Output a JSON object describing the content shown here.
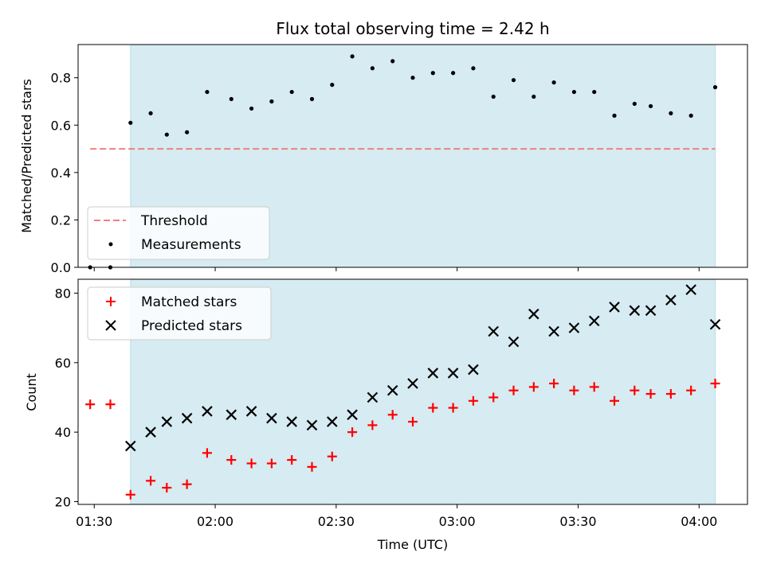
{
  "chart_data": [
    {
      "type": "scatter",
      "title": "Flux total observing time = 2.42 h",
      "xlabel": "",
      "ylabel": "Matched/Predicted stars",
      "xlim": [
        "01:26",
        "04:12"
      ],
      "ylim": [
        0,
        0.94
      ],
      "yticks": [
        "0.0",
        "0.2",
        "0.4",
        "0.6",
        "0.8"
      ],
      "ytick_values": [
        0,
        0.2,
        0.4,
        0.6,
        0.8
      ],
      "shaded_span": [
        "01:39",
        "04:04"
      ],
      "shaded_color": "#add8e6",
      "legend_position": "lower-left",
      "threshold": {
        "name": "Threshold",
        "value": 0.5,
        "x": [
          "01:29",
          "04:04"
        ],
        "color": "#f08080"
      },
      "series": [
        {
          "name": "Measurements",
          "color": "#000000",
          "x": [
            "01:29",
            "01:34",
            "01:39",
            "01:44",
            "01:48",
            "01:53",
            "01:58",
            "02:04",
            "02:09",
            "02:14",
            "02:19",
            "02:24",
            "02:29",
            "02:34",
            "02:39",
            "02:44",
            "02:49",
            "02:54",
            "02:59",
            "03:04",
            "03:09",
            "03:14",
            "03:19",
            "03:24",
            "03:29",
            "03:34",
            "03:39",
            "03:44",
            "03:48",
            "03:53",
            "03:58",
            "04:04"
          ],
          "y": [
            0.0,
            0.0,
            0.61,
            0.65,
            0.56,
            0.57,
            0.74,
            0.71,
            0.67,
            0.7,
            0.74,
            0.71,
            0.77,
            0.89,
            0.84,
            0.87,
            0.8,
            0.82,
            0.82,
            0.84,
            0.72,
            0.79,
            0.72,
            0.78,
            0.74,
            0.74,
            0.64,
            0.69,
            0.68,
            0.65,
            0.64,
            0.76
          ]
        }
      ]
    },
    {
      "type": "scatter",
      "title": "",
      "xlabel": "Time (UTC)",
      "ylabel": "Count",
      "xlim": [
        "01:26",
        "04:12"
      ],
      "ylim": [
        19.2,
        84
      ],
      "yticks": [
        "20",
        "40",
        "60",
        "80"
      ],
      "ytick_values": [
        20,
        40,
        60,
        80
      ],
      "xticks": [
        "01:30",
        "02:00",
        "02:30",
        "03:00",
        "03:30",
        "04:00"
      ],
      "xtick_values": [
        "01:30",
        "02:00",
        "02:30",
        "03:00",
        "03:30",
        "04:00"
      ],
      "shaded_span": [
        "01:39",
        "04:04"
      ],
      "shaded_color": "#add8e6",
      "legend_position": "upper-left",
      "series": [
        {
          "name": "Matched stars",
          "marker": "plus",
          "color": "#ff0000",
          "x": [
            "01:29",
            "01:34",
            "01:39",
            "01:44",
            "01:48",
            "01:53",
            "01:58",
            "02:04",
            "02:09",
            "02:14",
            "02:19",
            "02:24",
            "02:29",
            "02:34",
            "02:39",
            "02:44",
            "02:49",
            "02:54",
            "02:59",
            "03:04",
            "03:09",
            "03:14",
            "03:19",
            "03:24",
            "03:29",
            "03:34",
            "03:39",
            "03:44",
            "03:48",
            "03:53",
            "03:58",
            "04:04"
          ],
          "y": [
            48,
            48,
            22,
            26,
            24,
            25,
            34,
            32,
            31,
            31,
            32,
            30,
            33,
            40,
            42,
            45,
            43,
            47,
            47,
            49,
            50,
            52,
            53,
            54,
            52,
            53,
            49,
            52,
            51,
            51,
            52,
            54
          ]
        },
        {
          "name": "Predicted stars",
          "marker": "x",
          "color": "#000000",
          "x": [
            "01:39",
            "01:44",
            "01:48",
            "01:53",
            "01:58",
            "02:04",
            "02:09",
            "02:14",
            "02:19",
            "02:24",
            "02:29",
            "02:34",
            "02:39",
            "02:44",
            "02:49",
            "02:54",
            "02:59",
            "03:04",
            "03:09",
            "03:14",
            "03:19",
            "03:24",
            "03:29",
            "03:34",
            "03:39",
            "03:44",
            "03:48",
            "03:53",
            "03:58",
            "04:04"
          ],
          "y": [
            36,
            40,
            43,
            44,
            46,
            45,
            46,
            44,
            43,
            42,
            43,
            45,
            50,
            52,
            54,
            57,
            57,
            58,
            69,
            66,
            74,
            69,
            70,
            72,
            76,
            75,
            75,
            78,
            81,
            71
          ]
        }
      ]
    }
  ]
}
